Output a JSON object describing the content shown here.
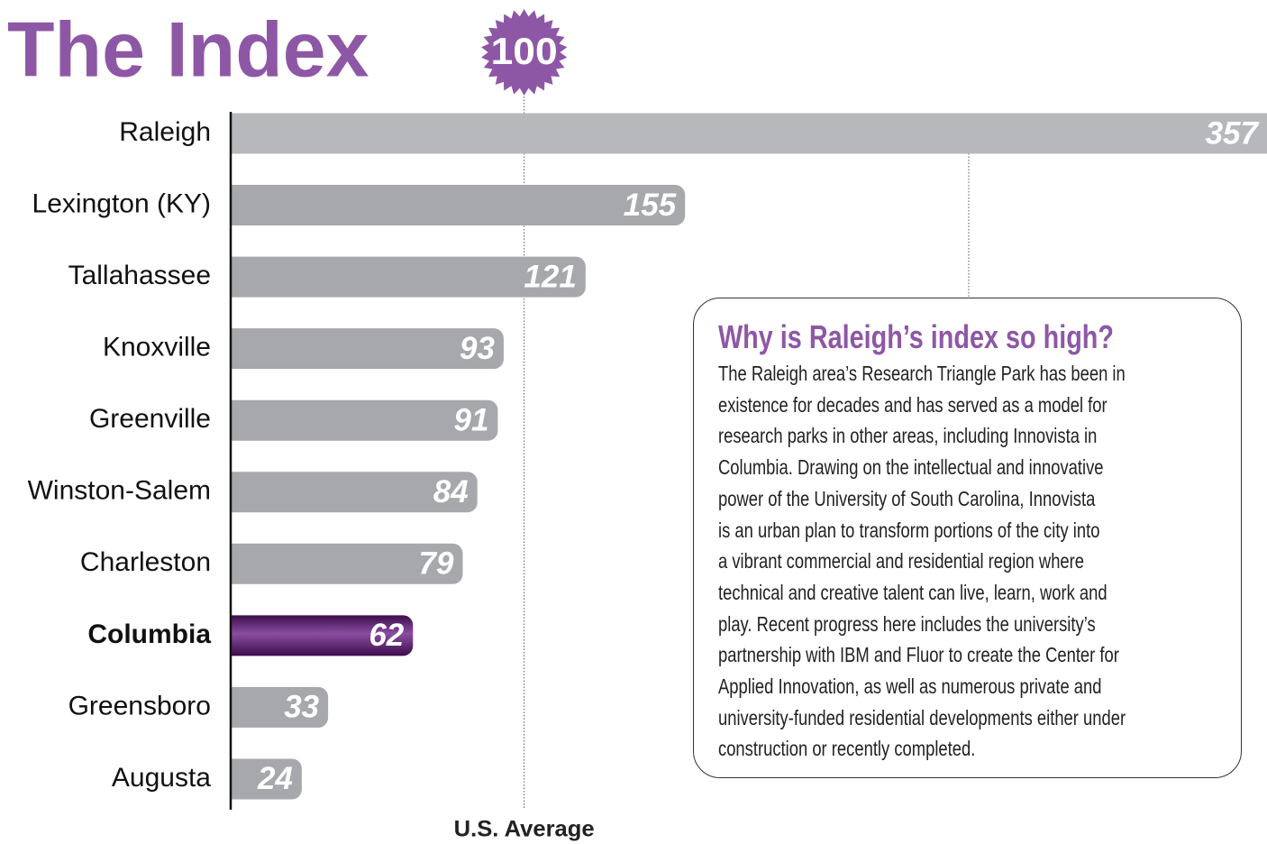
{
  "chart_data": {
    "type": "bar",
    "title": "The Index",
    "categories": [
      "Raleigh",
      "Lexington (KY)",
      "Tallahassee",
      "Knoxville",
      "Greenville",
      "Winston-Salem",
      "Charleston",
      "Columbia",
      "Greensboro",
      "Augusta"
    ],
    "values": [
      357,
      155,
      121,
      93,
      91,
      84,
      79,
      62,
      33,
      24
    ],
    "colors": [
      "#b7b8bb",
      "#a7a8ab",
      "#a7a8ab",
      "#a7a8ab",
      "#a7a8ab",
      "#a7a8ab",
      "#a7a8ab",
      "#5a1f6e",
      "#a7a8ab",
      "#a7a8ab"
    ],
    "highlight": "Columbia",
    "xlim": [
      0,
      357
    ],
    "reference": {
      "value": 100,
      "label": "U.S. Average"
    },
    "note": {
      "title": "Why is Raleigh’s index so high?",
      "lines": [
        "The Raleigh area’s Research Triangle Park has been in",
        "existence for decades and has served as a model for",
        "research parks in other areas, including Innovista in",
        "Columbia. Drawing on the intellectual and innovative",
        "power of the University of South Carolina, Innovista",
        "is an urban plan to transform portions of the city into",
        "a vibrant commercial and residential region where",
        "technical and creative talent can live, learn, work and",
        "play. Recent progress here includes the university’s",
        "partnership with IBM and Fluor to create the Center for",
        "Applied Innovation, as well as numerous private and",
        "university-funded residential developments either under",
        "construction or recently completed."
      ]
    }
  }
}
